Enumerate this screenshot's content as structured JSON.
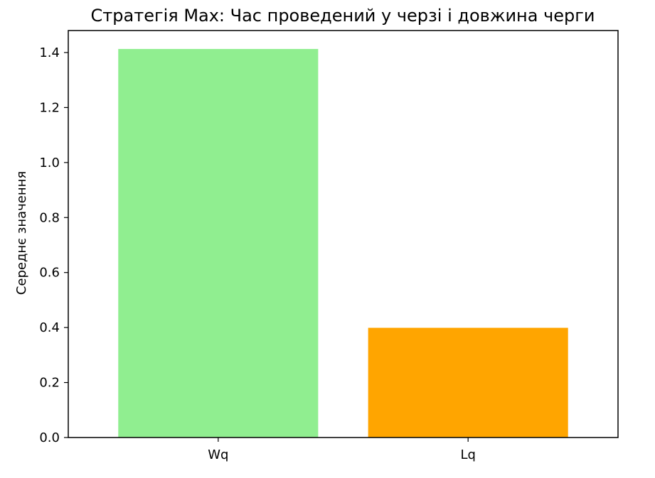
{
  "chart_data": {
    "type": "bar",
    "title": "Стратегія Max: Час проведений у черзі і довжина черги",
    "xlabel": "",
    "ylabel": "Середнє значення",
    "categories": [
      "Wq",
      "Lq"
    ],
    "values": [
      1.413,
      0.399
    ],
    "colors": [
      "#90ee90",
      "#ffa500"
    ],
    "ylim": [
      0,
      1.48
    ],
    "yticks": [
      0.0,
      0.2,
      0.4,
      0.6,
      0.8,
      1.0,
      1.2,
      1.4
    ],
    "ytick_labels": [
      "0.0",
      "0.2",
      "0.4",
      "0.6",
      "0.8",
      "1.0",
      "1.2",
      "1.4"
    ],
    "grid": false,
    "legend": false
  }
}
